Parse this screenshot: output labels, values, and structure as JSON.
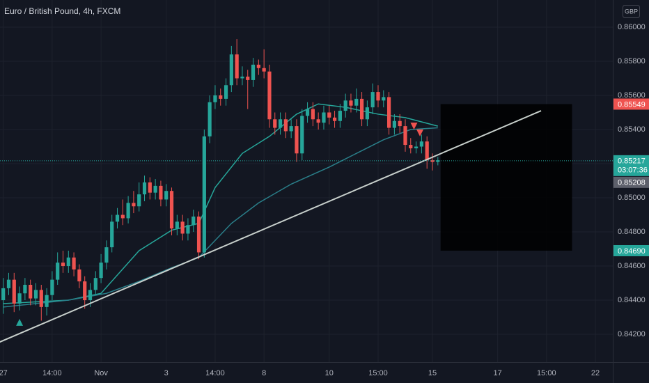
{
  "chart_data": {
    "type": "candlestick",
    "title": "Euro / British Pound, 4h, FXCM",
    "currency": "GBP",
    "xlim": [
      -0.6,
      112.2
    ],
    "ylim": [
      0.84037,
      0.86159
    ],
    "xticks": [
      {
        "value": 0,
        "label": "27"
      },
      {
        "value": 9,
        "label": "14:00"
      },
      {
        "value": 18,
        "label": "Nov"
      },
      {
        "value": 30,
        "label": "3"
      },
      {
        "value": 39,
        "label": "14:00"
      },
      {
        "value": 48,
        "label": "8"
      },
      {
        "value": 60,
        "label": "10"
      },
      {
        "value": 69,
        "label": "15:00"
      },
      {
        "value": 79,
        "label": "15"
      },
      {
        "value": 91,
        "label": "17"
      },
      {
        "value": 100,
        "label": "15:00"
      },
      {
        "value": 109,
        "label": "22"
      }
    ],
    "yticks": [
      {
        "value": 0.842,
        "label": "0.84200"
      },
      {
        "value": 0.844,
        "label": "0.84400"
      },
      {
        "value": 0.846,
        "label": "0.84600"
      },
      {
        "value": 0.848,
        "label": "0.84800"
      },
      {
        "value": 0.85,
        "label": "0.85000"
      },
      {
        "value": 0.852,
        "label": "0.85200"
      },
      {
        "value": 0.854,
        "label": "0.85400"
      },
      {
        "value": 0.856,
        "label": "0.85600"
      },
      {
        "value": 0.858,
        "label": "0.85800"
      },
      {
        "value": 0.86,
        "label": "0.86000"
      }
    ],
    "grid": true,
    "up_color": "#26a69a",
    "down_color": "#ef5350",
    "open": [
      0.844,
      0.8447,
      0.8452,
      0.8438,
      0.8444,
      0.8449,
      0.8441,
      0.8446,
      0.8436,
      0.8443,
      0.8452,
      0.8462,
      0.846,
      0.8465,
      0.8458,
      0.8451,
      0.844,
      0.8446,
      0.8453,
      0.8462,
      0.8471,
      0.8486,
      0.849,
      0.8488,
      0.8497,
      0.8495,
      0.8502,
      0.8509,
      0.8503,
      0.8507,
      0.8499,
      0.8504,
      0.8482,
      0.8486,
      0.8479,
      0.8484,
      0.8489,
      0.8468,
      0.8536,
      0.8556,
      0.856,
      0.8558,
      0.8566,
      0.8584,
      0.857,
      0.8571,
      0.8569,
      0.8578,
      0.8576,
      0.8574,
      0.8546,
      0.8541,
      0.8546,
      0.8539,
      0.8542,
      0.8526,
      0.8548,
      0.8552,
      0.8546,
      0.8544,
      0.855,
      0.8547,
      0.8545,
      0.8551,
      0.8557,
      0.8554,
      0.8558,
      0.8546,
      0.8553,
      0.8562,
      0.8557,
      0.8559,
      0.8541,
      0.8545,
      0.8542,
      0.8531,
      0.8529,
      0.853,
      0.8533,
      0.8522,
      0.8521
    ],
    "high": [
      0.8453,
      0.8456,
      0.8456,
      0.8448,
      0.8453,
      0.8452,
      0.845,
      0.8449,
      0.8447,
      0.8457,
      0.8468,
      0.8469,
      0.8469,
      0.8468,
      0.8461,
      0.8454,
      0.845,
      0.8457,
      0.8467,
      0.8475,
      0.849,
      0.8494,
      0.8499,
      0.8501,
      0.8504,
      0.8509,
      0.8513,
      0.8512,
      0.8511,
      0.851,
      0.8508,
      0.8506,
      0.849,
      0.849,
      0.8488,
      0.8493,
      0.8492,
      0.854,
      0.856,
      0.8566,
      0.8564,
      0.857,
      0.8589,
      0.8593,
      0.8577,
      0.8575,
      0.8582,
      0.8581,
      0.8587,
      0.8578,
      0.855,
      0.855,
      0.855,
      0.8546,
      0.8546,
      0.8552,
      0.8556,
      0.8556,
      0.855,
      0.8554,
      0.8554,
      0.8551,
      0.8555,
      0.8561,
      0.8561,
      0.8564,
      0.8562,
      0.8557,
      0.8567,
      0.8566,
      0.8563,
      0.8562,
      0.8549,
      0.8549,
      0.8546,
      0.8535,
      0.8533,
      0.8537,
      0.8536,
      0.8526,
      0.8524
    ],
    "low": [
      0.8432,
      0.8443,
      0.8433,
      0.8434,
      0.844,
      0.8437,
      0.8437,
      0.8428,
      0.8431,
      0.844,
      0.8449,
      0.8456,
      0.8456,
      0.8454,
      0.8447,
      0.8435,
      0.8436,
      0.8443,
      0.845,
      0.8458,
      0.8468,
      0.8482,
      0.8484,
      0.8485,
      0.8491,
      0.8492,
      0.8498,
      0.8499,
      0.8499,
      0.8495,
      0.8495,
      0.8478,
      0.8478,
      0.8475,
      0.8475,
      0.848,
      0.8464,
      0.8465,
      0.8532,
      0.8552,
      0.8554,
      0.8554,
      0.8562,
      0.8566,
      0.8566,
      0.8552,
      0.8565,
      0.8572,
      0.857,
      0.8541,
      0.8537,
      0.8537,
      0.8535,
      0.8535,
      0.8521,
      0.8522,
      0.8544,
      0.8542,
      0.854,
      0.854,
      0.8543,
      0.8541,
      0.8541,
      0.8547,
      0.855,
      0.855,
      0.8542,
      0.8542,
      0.8549,
      0.8553,
      0.8553,
      0.8537,
      0.8537,
      0.8538,
      0.8527,
      0.8526,
      0.8526,
      0.8526,
      0.8517,
      0.8516,
      0.8519
    ],
    "close": [
      0.8447,
      0.8452,
      0.8438,
      0.8444,
      0.8449,
      0.8441,
      0.8446,
      0.8436,
      0.8443,
      0.8452,
      0.8462,
      0.846,
      0.8465,
      0.8458,
      0.8451,
      0.844,
      0.8446,
      0.8453,
      0.8462,
      0.8471,
      0.8486,
      0.849,
      0.8488,
      0.8497,
      0.8495,
      0.8502,
      0.8509,
      0.8503,
      0.8507,
      0.8499,
      0.8504,
      0.8482,
      0.8486,
      0.8479,
      0.8484,
      0.8489,
      0.8468,
      0.8536,
      0.8556,
      0.856,
      0.8558,
      0.8566,
      0.8584,
      0.857,
      0.8571,
      0.8569,
      0.8578,
      0.8576,
      0.8574,
      0.8546,
      0.8541,
      0.8546,
      0.8539,
      0.8542,
      0.8526,
      0.8548,
      0.8552,
      0.8546,
      0.8544,
      0.855,
      0.8547,
      0.8545,
      0.8551,
      0.8557,
      0.8554,
      0.8558,
      0.8546,
      0.8553,
      0.8562,
      0.8557,
      0.8559,
      0.8541,
      0.8545,
      0.8542,
      0.8531,
      0.8529,
      0.853,
      0.8533,
      0.8522,
      0.8521,
      0.8522
    ],
    "indicators": [
      {
        "color": "#26a69a",
        "x": [
          0,
          12,
          18,
          25,
          31,
          36,
          39,
          44,
          49,
          54,
          58,
          63,
          69,
          74,
          80
        ],
        "values": [
          0.8438,
          0.844,
          0.8444,
          0.8469,
          0.8481,
          0.8485,
          0.8506,
          0.8526,
          0.8536,
          0.8549,
          0.8555,
          0.8553,
          0.8549,
          0.8547,
          0.8542
        ]
      },
      {
        "color": "#2a7f8a",
        "x": [
          0,
          12,
          19,
          25,
          31,
          36,
          42,
          47,
          53,
          60,
          65,
          70,
          75,
          80
        ],
        "values": [
          0.8436,
          0.844,
          0.8444,
          0.8451,
          0.8459,
          0.8465,
          0.8485,
          0.8497,
          0.8508,
          0.8518,
          0.8526,
          0.8534,
          0.854,
          0.8541
        ]
      }
    ],
    "trendline": {
      "color": "#c8d0cc",
      "x": [
        -1,
        99
      ],
      "values": [
        0.8415,
        0.8551
      ]
    },
    "markers": [
      {
        "x": 3,
        "value": 0.8427,
        "direction": "up",
        "color": "#26a69a"
      },
      {
        "x": 75.6,
        "value": 0.8542,
        "direction": "down",
        "color": "#ef5350"
      },
      {
        "x": 76.7,
        "value": 0.8538,
        "direction": "down",
        "color": "#ef5350"
      }
    ],
    "position": {
      "x": [
        80.5,
        104.7
      ],
      "entry": 0.85208,
      "stop": 0.85549,
      "target": 0.8469,
      "stop_color": "#5a2a2e",
      "target_color": "#15534f"
    },
    "last_price": {
      "value": 0.85217,
      "label": "0.85217",
      "countdown": "03:07:36",
      "color": "#26a69a"
    },
    "price_labels": [
      {
        "value": 0.85549,
        "label": "0.85549",
        "color": "#ef5350"
      },
      {
        "value": 0.85208,
        "label": "0.85208",
        "color": "#5d606b"
      },
      {
        "value": 0.8469,
        "label": "0.84690",
        "color": "#26a69a"
      }
    ]
  }
}
